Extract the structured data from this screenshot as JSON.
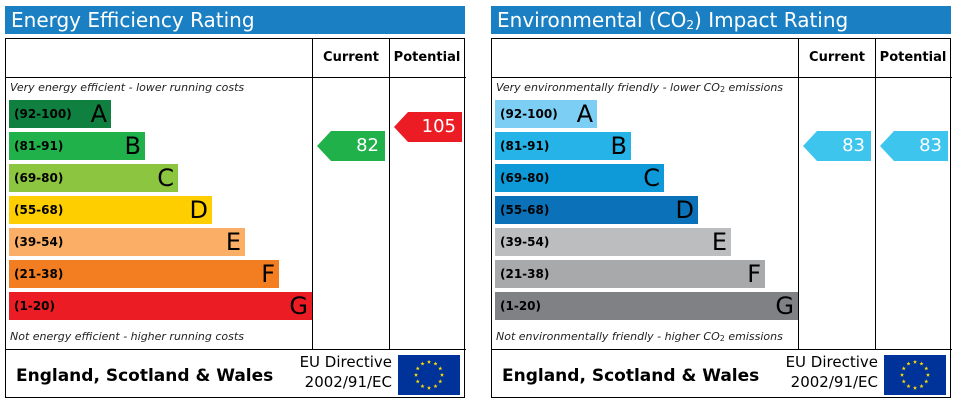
{
  "chart_data": [
    {
      "type": "table",
      "title": "Energy Efficiency Rating",
      "columns": [
        "Current",
        "Potential"
      ],
      "top_note": "Very energy efficient - lower running costs",
      "bottom_note": "Not energy efficient - higher running costs",
      "bands": [
        {
          "range": "(92-100)",
          "letter": "A",
          "color": "#0f8040"
        },
        {
          "range": "(81-91)",
          "letter": "B",
          "color": "#20b14a"
        },
        {
          "range": "(69-80)",
          "letter": "C",
          "color": "#8cc540"
        },
        {
          "range": "(55-68)",
          "letter": "D",
          "color": "#fece00"
        },
        {
          "range": "(39-54)",
          "letter": "E",
          "color": "#fbaf66"
        },
        {
          "range": "(21-38)",
          "letter": "F",
          "color": "#f37e21"
        },
        {
          "range": "(1-20)",
          "letter": "G",
          "color": "#ec1c24"
        }
      ],
      "current": {
        "value": 82,
        "color": "#20b14a"
      },
      "potential": {
        "value": 105,
        "color": "#ec1c24"
      },
      "region": "England, Scotland & Wales",
      "directive_line1": "EU Directive",
      "directive_line2": "2002/91/EC"
    },
    {
      "type": "table",
      "title": "Environmental (CO2) Impact Rating",
      "columns": [
        "Current",
        "Potential"
      ],
      "top_note": "Very environmentally friendly - lower CO2 emissions",
      "bottom_note": "Not environmentally friendly - higher CO2 emissions",
      "bands": [
        {
          "range": "(92-100)",
          "letter": "A",
          "color": "#7dcef5"
        },
        {
          "range": "(81-91)",
          "letter": "B",
          "color": "#26b4e8"
        },
        {
          "range": "(69-80)",
          "letter": "C",
          "color": "#0e9ad8"
        },
        {
          "range": "(55-68)",
          "letter": "D",
          "color": "#0b71b8"
        },
        {
          "range": "(39-54)",
          "letter": "E",
          "color": "#bbbdbf"
        },
        {
          "range": "(21-38)",
          "letter": "F",
          "color": "#a7a9ab"
        },
        {
          "range": "(1-20)",
          "letter": "G",
          "color": "#808184"
        }
      ],
      "current": {
        "value": 83,
        "color": "#3ec5ee"
      },
      "potential": {
        "value": 83,
        "color": "#3ec5ee"
      },
      "region": "England, Scotland & Wales",
      "directive_line1": "EU Directive",
      "directive_line2": "2002/91/EC"
    }
  ],
  "colors": {
    "title_bar": "#1a80c3",
    "eu_flag": "#003399",
    "eu_stars": "#ffdd00"
  },
  "icons": {
    "eu_flag": "eu-flag-icon"
  }
}
